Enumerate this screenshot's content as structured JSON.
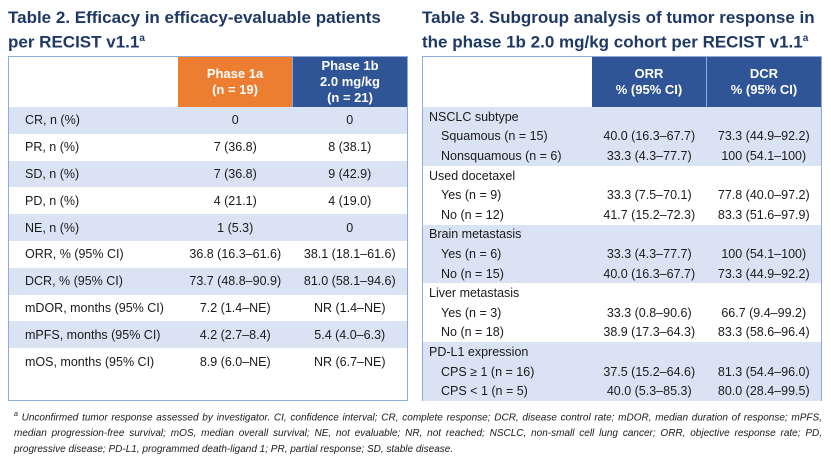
{
  "table2": {
    "title": "Table 2. Efficacy in efficacy-evaluable patients per RECIST v1.1",
    "title_sup": "a",
    "headers": [
      "Phase 1a (n = 19)",
      "Phase 1b 2.0 mg/kg (n = 21)"
    ],
    "header_lines": [
      [
        "Phase 1a",
        "(n = 19)"
      ],
      [
        "Phase 1b",
        "2.0 mg/kg",
        "(n = 21)"
      ]
    ],
    "rows": [
      [
        "CR, n (%)",
        "0",
        "0"
      ],
      [
        "PR, n (%)",
        "7 (36.8)",
        "8 (38.1)"
      ],
      [
        "SD, n (%)",
        "7 (36.8)",
        "9 (42.9)"
      ],
      [
        "PD, n (%)",
        "4 (21.1)",
        "4 (19.0)"
      ],
      [
        "NE, n (%)",
        "1 (5.3)",
        "0"
      ],
      [
        "ORR, % (95% CI)",
        "36.8 (16.3–61.6)",
        "38.1 (18.1–61.6)"
      ],
      [
        "DCR, % (95% CI)",
        "73.7 (48.8–90.9)",
        "81.0 (58.1–94.6)"
      ],
      [
        "mDOR, months (95% CI)",
        "7.2 (1.4–NE)",
        "NR (1.4–NE)"
      ],
      [
        "mPFS, months (95% CI)",
        "4.2 (2.7–8.4)",
        "5.4 (4.0–6.3)"
      ],
      [
        "mOS, months (95% CI)",
        "8.9 (6.0–NE)",
        "NR (6.7–NE)"
      ]
    ]
  },
  "table3": {
    "title": "Table 3. Subgroup analysis of tumor response in the phase 1b 2.0 mg/kg cohort per RECIST v1.1",
    "title_sup": "a",
    "header_lines": [
      [
        "ORR",
        "% (95% CI)"
      ],
      [
        "DCR",
        "% (95% CI)"
      ]
    ],
    "groups": [
      {
        "name": "NSCLC subtype",
        "rows": [
          [
            "Squamous (n = 15)",
            "40.0 (16.3–67.7)",
            "73.3 (44.9–92.2)"
          ],
          [
            "Nonsquamous (n = 6)",
            "33.3 (4.3–77.7)",
            "100 (54.1–100)"
          ]
        ]
      },
      {
        "name": "Used docetaxel",
        "rows": [
          [
            "Yes (n = 9)",
            "33.3 (7.5–70.1)",
            "77.8 (40.0–97.2)"
          ],
          [
            "No (n = 12)",
            "41.7 (15.2–72.3)",
            "83.3 (51.6–97.9)"
          ]
        ]
      },
      {
        "name": "Brain metastasis",
        "rows": [
          [
            "Yes (n = 6)",
            "33.3 (4.3–77.7)",
            "100 (54.1–100)"
          ],
          [
            "No (n = 15)",
            "40.0 (16.3–67.7)",
            "73.3 (44.9–92.2)"
          ]
        ]
      },
      {
        "name": "Liver metastasis",
        "rows": [
          [
            "Yes (n = 3)",
            "33.3 (0.8–90.6)",
            "66.7 (9.4–99.2)"
          ],
          [
            "No (n = 18)",
            "38.9 (17.3–64.3)",
            "83.3 (58.6–96.4)"
          ]
        ]
      },
      {
        "name": "PD-L1 expression",
        "rows": [
          [
            "CPS ≥ 1 (n = 16)",
            "37.5 (15.2–64.6)",
            "81.3 (54.4–96.0)"
          ],
          [
            "CPS < 1 (n = 5)",
            "40.0 (5.3–85.3)",
            "80.0 (28.4–99.5)"
          ]
        ]
      }
    ]
  },
  "footnote": {
    "sup": "a",
    "text": " Unconfirmed tumor response assessed by investigator. CI, confidence interval; CR, complete response; DCR, disease control rate; mDOR, median duration of response; mPFS, median progression-free survival; mOS, median overall survival; NE, not evaluable; NR, not reached; NSCLC, non-small cell lung cancer; ORR, objective response rate; PD, progressive disease; PD-L1, programmed death-ligand 1; PR, partial response; SD, stable disease."
  },
  "colors": {
    "orange": "#ED7D31",
    "navy": "#2F5597",
    "light_row": "#DAE3F3",
    "title": "#1F3864"
  }
}
